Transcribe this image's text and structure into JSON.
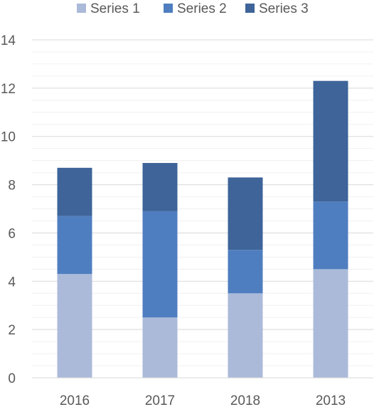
{
  "chart_data": {
    "type": "bar",
    "stacked": true,
    "categories": [
      "2016",
      "2017",
      "2018",
      "2013"
    ],
    "series": [
      {
        "name": "Series 1",
        "values": [
          4.3,
          2.5,
          3.5,
          4.5
        ],
        "color": "#abbad9"
      },
      {
        "name": "Series 2",
        "values": [
          2.4,
          4.4,
          1.8,
          2.8
        ],
        "color": "#4f7ec0"
      },
      {
        "name": "Series 3",
        "values": [
          2.0,
          2.0,
          3.0,
          5.0
        ],
        "color": "#3e6499"
      }
    ],
    "ylim": [
      0,
      14
    ],
    "yticks": [
      "0",
      "2",
      "4",
      "6",
      "8",
      "10",
      "12",
      "14"
    ],
    "grid": true,
    "legend_position": "top",
    "title": "",
    "xlabel": "",
    "ylabel": ""
  }
}
